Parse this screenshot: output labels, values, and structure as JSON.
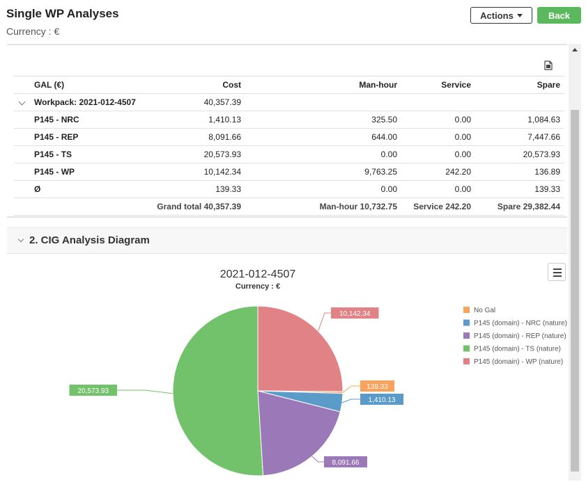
{
  "header": {
    "title": "Single WP Analyses",
    "currency_label": "Currency : €",
    "actions_label": "Actions",
    "back_label": "Back"
  },
  "table": {
    "columns": [
      "GAL (€)",
      "Cost",
      "Man-hour",
      "Service",
      "Spare"
    ],
    "group_row": {
      "label": "Workpack: 2021-012-4507",
      "cost": "40,357.39"
    },
    "rows": [
      {
        "gal": "P145 - NRC",
        "cost": "1,410.13",
        "man_hour": "325.50",
        "service": "0.00",
        "spare": "1,084.63"
      },
      {
        "gal": "P145 - REP",
        "cost": "8,091.66",
        "man_hour": "644.00",
        "service": "0.00",
        "spare": "7,447.66"
      },
      {
        "gal": "P145 - TS",
        "cost": "20,573.93",
        "man_hour": "0.00",
        "service": "0.00",
        "spare": "20,573.93"
      },
      {
        "gal": "P145 - WP",
        "cost": "10,142.34",
        "man_hour": "9,763.25",
        "service": "242.20",
        "spare": "136.89"
      },
      {
        "gal": "Ø",
        "cost": "139.33",
        "man_hour": "0.00",
        "service": "0.00",
        "spare": "139.33"
      }
    ],
    "totals": {
      "cost": "Grand total 40,357.39",
      "man_hour": "Man-hour 10,732.75",
      "service": "Service 242.20",
      "spare": "Spare 29,382.44"
    }
  },
  "section": {
    "title": "2. CIG Analysis Diagram"
  },
  "chart_data": {
    "type": "pie",
    "title": "2021-012-4507",
    "subtitle": "Currency : €",
    "legend_position": "right",
    "slices": [
      {
        "name": "No Gal",
        "value": 139.33,
        "label": "139.33",
        "color": "#f7a35c"
      },
      {
        "name": "P145 (domain) - NRC (nature)",
        "value": 1410.13,
        "label": "1,410.13",
        "color": "#5b9bc9"
      },
      {
        "name": "P145 (domain) - REP (nature)",
        "value": 8091.66,
        "label": "8,091.66",
        "color": "#9b78b8"
      },
      {
        "name": "P145 (domain) - TS (nature)",
        "value": 20573.93,
        "label": "20,573.93",
        "color": "#72c16b"
      },
      {
        "name": "P145 (domain) - WP (nature)",
        "value": 10142.34,
        "label": "10,142.34",
        "color": "#e08286"
      }
    ]
  }
}
